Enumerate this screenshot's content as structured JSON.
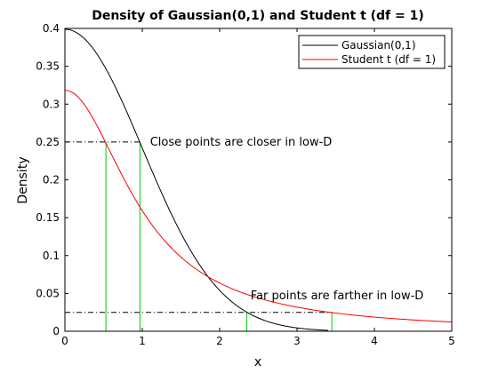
{
  "chart_data": {
    "type": "line",
    "title": "Density of Gaussian(0,1) and Student t (df = 1)",
    "xlabel": "x",
    "ylabel": "Density",
    "xlim": [
      0,
      5
    ],
    "ylim": [
      0,
      0.4
    ],
    "x_ticks": [
      "0",
      "1",
      "2",
      "3",
      "4",
      "5"
    ],
    "y_ticks": [
      "0",
      "0.05",
      "0.1",
      "0.15",
      "0.2",
      "0.25",
      "0.3",
      "0.35",
      "0.4"
    ],
    "grid": false,
    "legend_position": "top-right",
    "series": [
      {
        "name": "Gaussian(0,1)",
        "color": "#000000",
        "distribution": "normal",
        "x_range": [
          0,
          3.4
        ]
      },
      {
        "name": "Student t (df = 1)",
        "color": "#ff0000",
        "distribution": "cauchy",
        "x_range": [
          0,
          5
        ]
      }
    ],
    "reference_lines": {
      "color": "#000000",
      "style": "dash-dot",
      "horizontal": [
        {
          "y": 0.25,
          "x_from": 0,
          "x_to": 0.97
        },
        {
          "y": 0.025,
          "x_from": 0,
          "x_to": 3.45
        }
      ]
    },
    "vertical_markers": {
      "color": "#00c800",
      "items": [
        {
          "x": 0.53,
          "y": 0.25
        },
        {
          "x": 0.97,
          "y": 0.25
        },
        {
          "x": 2.35,
          "y": 0.025
        },
        {
          "x": 3.45,
          "y": 0.025
        }
      ]
    },
    "annotations": [
      {
        "text": "Close points are closer in low-D",
        "x": 1.1,
        "y": 0.25
      },
      {
        "text": "Far points are farther in low-D",
        "x": 2.4,
        "y": 0.047
      }
    ]
  }
}
